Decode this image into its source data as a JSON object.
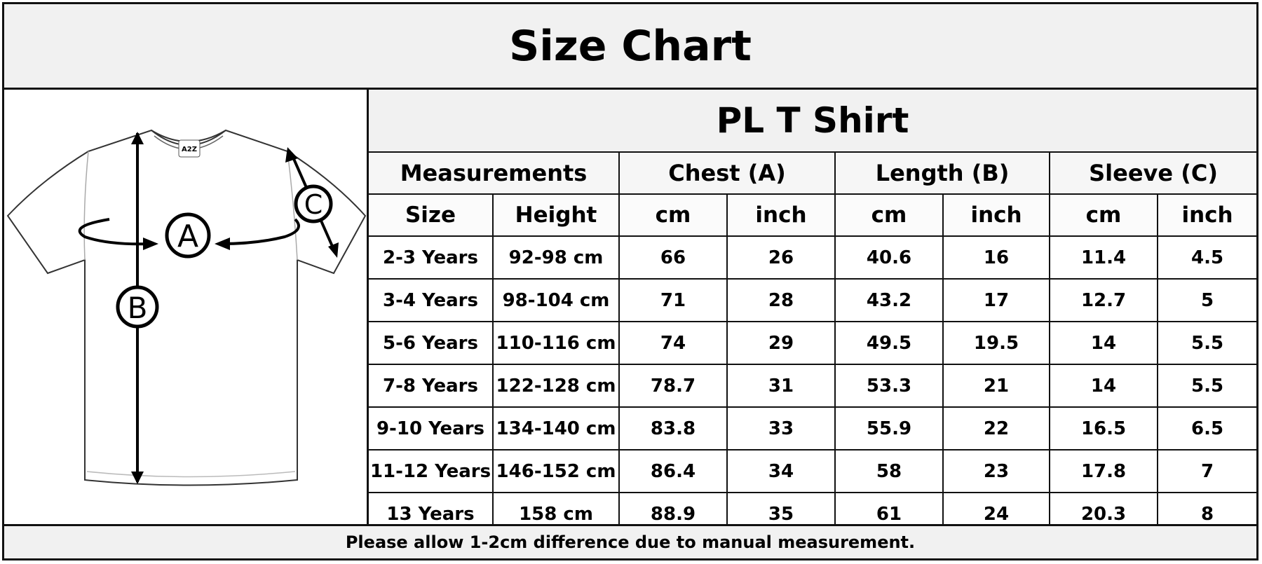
{
  "title": "Size Chart",
  "product": "PL T Shirt",
  "figure": {
    "labels": {
      "a": "A",
      "b": "B",
      "c": "C"
    },
    "logo_text": "A2Z"
  },
  "table": {
    "groups": [
      "Measurements",
      "Chest (A)",
      "Length (B)",
      "Sleeve (C)"
    ],
    "subheaders": [
      "Size",
      "Height",
      "cm",
      "inch",
      "cm",
      "inch",
      "cm",
      "inch"
    ],
    "rows": [
      [
        "2-3 Years",
        "92-98 cm",
        "66",
        "26",
        "40.6",
        "16",
        "11.4",
        "4.5"
      ],
      [
        "3-4 Years",
        "98-104 cm",
        "71",
        "28",
        "43.2",
        "17",
        "12.7",
        "5"
      ],
      [
        "5-6 Years",
        "110-116 cm",
        "74",
        "29",
        "49.5",
        "19.5",
        "14",
        "5.5"
      ],
      [
        "7-8 Years",
        "122-128 cm",
        "78.7",
        "31",
        "53.3",
        "21",
        "14",
        "5.5"
      ],
      [
        "9-10 Years",
        "134-140 cm",
        "83.8",
        "33",
        "55.9",
        "22",
        "16.5",
        "6.5"
      ],
      [
        "11-12 Years",
        "146-152 cm",
        "86.4",
        "34",
        "58",
        "23",
        "17.8",
        "7"
      ],
      [
        "13 Years",
        "158 cm",
        "88.9",
        "35",
        "61",
        "24",
        "20.3",
        "8"
      ]
    ]
  },
  "footer": "Please allow 1-2cm difference due to manual measurement."
}
